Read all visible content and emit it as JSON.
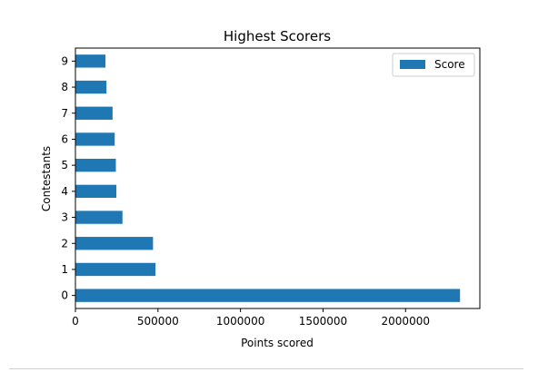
{
  "chart_data": {
    "type": "bar",
    "orientation": "horizontal",
    "title": "Highest Scorers",
    "xlabel": "Points scored",
    "ylabel": "Contestants",
    "categories": [
      "0",
      "1",
      "2",
      "3",
      "4",
      "5",
      "6",
      "7",
      "8",
      "9"
    ],
    "series": [
      {
        "name": "Score",
        "color": "#1f77b4",
        "values": [
          2330000,
          485000,
          470000,
          285000,
          248000,
          245000,
          238000,
          225000,
          188000,
          182000
        ]
      }
    ],
    "xlim": [
      0,
      2450000
    ],
    "xticks": [
      0,
      500000,
      1000000,
      1500000,
      2000000
    ],
    "xtick_labels": [
      "0",
      "500000",
      "1000000",
      "1500000",
      "2000000"
    ],
    "grid": false,
    "legend_position": "top-right"
  }
}
